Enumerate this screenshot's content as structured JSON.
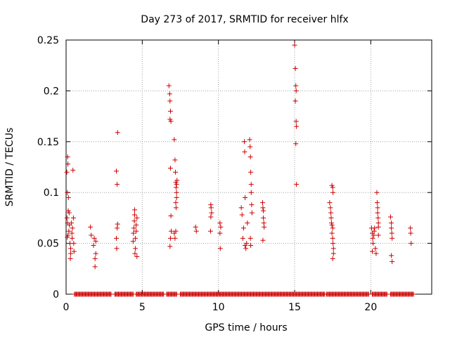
{
  "chart_data": {
    "type": "scatter",
    "title": "Day 273 of 2017, SRMTID for receiver hlfx",
    "xlabel": "GPS time / hours",
    "ylabel": "SRMTID / TECUs",
    "xlim": [
      0,
      24
    ],
    "ylim": [
      0,
      0.25
    ],
    "xticks": [
      0,
      5,
      10,
      15,
      20
    ],
    "xtick_labels": [
      "0",
      "5",
      "10",
      "15",
      "20"
    ],
    "yticks": [
      0,
      0.05,
      0.1,
      0.15,
      0.2,
      0.25
    ],
    "ytick_labels": [
      "0",
      "0.05",
      "0.1",
      "0.15",
      "0.2",
      "0.25"
    ],
    "grid": true,
    "marker": "+",
    "color": "#cc0000",
    "series": [
      {
        "points": [
          [
            0.05,
            0.12
          ],
          [
            0.1,
            0.135
          ],
          [
            0.12,
            0.128
          ],
          [
            0.08,
            0.1
          ],
          [
            0.15,
            0.095
          ],
          [
            0.06,
            0.075
          ],
          [
            0.1,
            0.07
          ],
          [
            0.14,
            0.082
          ],
          [
            0.2,
            0.08
          ],
          [
            0.08,
            0.056
          ],
          [
            0.12,
            0.058
          ],
          [
            0.18,
            0.062
          ],
          [
            0.22,
            0.068
          ],
          [
            0.25,
            0.05
          ],
          [
            0.3,
            0.045
          ],
          [
            0.3,
            0.04
          ],
          [
            0.28,
            0.035
          ],
          [
            0.35,
            0.07
          ],
          [
            0.38,
            0.06
          ],
          [
            0.4,
            0.055
          ],
          [
            0.42,
            0.065
          ],
          [
            0.45,
            0.122
          ],
          [
            0.48,
            0.075
          ],
          [
            0.5,
            0.05
          ],
          [
            0.52,
            0.042
          ],
          [
            1.6,
            0.066
          ],
          [
            1.65,
            0.058
          ],
          [
            1.8,
            0.048
          ],
          [
            1.85,
            0.055
          ],
          [
            1.9,
            0.035
          ],
          [
            1.9,
            0.027
          ],
          [
            1.95,
            0.04
          ],
          [
            1.95,
            0.052
          ],
          [
            3.3,
            0.055
          ],
          [
            3.32,
            0.045
          ],
          [
            3.35,
            0.065
          ],
          [
            3.38,
            0.069
          ],
          [
            3.35,
            0.108
          ],
          [
            3.3,
            0.121
          ],
          [
            3.38,
            0.159
          ],
          [
            4.4,
            0.052
          ],
          [
            4.42,
            0.06
          ],
          [
            4.45,
            0.065
          ],
          [
            4.48,
            0.072
          ],
          [
            4.5,
            0.078
          ],
          [
            4.5,
            0.083
          ],
          [
            4.52,
            0.04
          ],
          [
            4.55,
            0.045
          ],
          [
            4.55,
            0.055
          ],
          [
            4.6,
            0.062
          ],
          [
            4.6,
            0.068
          ],
          [
            4.65,
            0.075
          ],
          [
            4.65,
            0.037
          ],
          [
            6.75,
            0.205
          ],
          [
            6.8,
            0.197
          ],
          [
            6.82,
            0.19
          ],
          [
            6.85,
            0.18
          ],
          [
            6.88,
            0.17
          ],
          [
            6.82,
            0.172
          ],
          [
            6.85,
            0.124
          ],
          [
            6.88,
            0.077
          ],
          [
            6.9,
            0.062
          ],
          [
            6.85,
            0.055
          ],
          [
            6.82,
            0.047
          ],
          [
            7.1,
            0.152
          ],
          [
            7.15,
            0.132
          ],
          [
            7.18,
            0.12
          ],
          [
            7.2,
            0.11
          ],
          [
            7.22,
            0.105
          ],
          [
            7.25,
            0.1
          ],
          [
            7.25,
            0.095
          ],
          [
            7.2,
            0.09
          ],
          [
            7.22,
            0.085
          ],
          [
            7.25,
            0.108
          ],
          [
            7.28,
            0.112
          ],
          [
            7.2,
            0.062
          ],
          [
            7.15,
            0.055
          ],
          [
            7.1,
            0.06
          ],
          [
            8.5,
            0.066
          ],
          [
            8.55,
            0.062
          ],
          [
            9.5,
            0.088
          ],
          [
            9.52,
            0.085
          ],
          [
            9.55,
            0.08
          ],
          [
            9.5,
            0.076
          ],
          [
            9.48,
            0.062
          ],
          [
            10.1,
            0.07
          ],
          [
            10.15,
            0.066
          ],
          [
            10.1,
            0.06
          ],
          [
            10.12,
            0.045
          ],
          [
            11.5,
            0.085
          ],
          [
            11.55,
            0.078
          ],
          [
            11.6,
            0.055
          ],
          [
            11.65,
            0.065
          ],
          [
            11.7,
            0.15
          ],
          [
            11.72,
            0.14
          ],
          [
            11.75,
            0.095
          ],
          [
            11.75,
            0.048
          ],
          [
            11.8,
            0.045
          ],
          [
            11.85,
            0.05
          ],
          [
            11.9,
            0.07
          ],
          [
            12.05,
            0.152
          ],
          [
            12.08,
            0.145
          ],
          [
            12.1,
            0.135
          ],
          [
            12.12,
            0.12
          ],
          [
            12.15,
            0.108
          ],
          [
            12.15,
            0.1
          ],
          [
            12.18,
            0.088
          ],
          [
            12.2,
            0.08
          ],
          [
            12.1,
            0.055
          ],
          [
            12.12,
            0.048
          ],
          [
            12.9,
            0.09
          ],
          [
            12.92,
            0.085
          ],
          [
            12.95,
            0.082
          ],
          [
            12.95,
            0.075
          ],
          [
            12.98,
            0.07
          ],
          [
            13.0,
            0.066
          ],
          [
            12.92,
            0.053
          ],
          [
            15.0,
            0.245
          ],
          [
            15.05,
            0.222
          ],
          [
            15.08,
            0.205
          ],
          [
            15.1,
            0.2
          ],
          [
            15.05,
            0.19
          ],
          [
            15.1,
            0.17
          ],
          [
            15.12,
            0.165
          ],
          [
            15.08,
            0.148
          ],
          [
            15.12,
            0.108
          ],
          [
            17.3,
            0.09
          ],
          [
            17.35,
            0.085
          ],
          [
            17.38,
            0.08
          ],
          [
            17.4,
            0.075
          ],
          [
            17.42,
            0.07
          ],
          [
            17.45,
            0.068
          ],
          [
            17.5,
            0.065
          ],
          [
            17.5,
            0.105
          ],
          [
            17.52,
            0.1
          ],
          [
            17.45,
            0.06
          ],
          [
            17.5,
            0.055
          ],
          [
            17.52,
            0.05
          ],
          [
            17.55,
            0.045
          ],
          [
            17.55,
            0.04
          ],
          [
            17.5,
            0.035
          ],
          [
            17.45,
            0.107
          ],
          [
            20.05,
            0.065
          ],
          [
            20.1,
            0.06
          ],
          [
            20.12,
            0.055
          ],
          [
            20.15,
            0.05
          ],
          [
            20.1,
            0.042
          ],
          [
            20.2,
            0.058
          ],
          [
            20.22,
            0.062
          ],
          [
            20.25,
            0.065
          ],
          [
            20.3,
            0.045
          ],
          [
            20.35,
            0.04
          ],
          [
            20.4,
            0.1
          ],
          [
            20.42,
            0.09
          ],
          [
            20.45,
            0.085
          ],
          [
            20.45,
            0.08
          ],
          [
            20.48,
            0.075
          ],
          [
            20.5,
            0.07
          ],
          [
            20.5,
            0.066
          ],
          [
            20.5,
            0.058
          ],
          [
            21.3,
            0.076
          ],
          [
            21.35,
            0.07
          ],
          [
            21.35,
            0.065
          ],
          [
            21.38,
            0.06
          ],
          [
            21.4,
            0.055
          ],
          [
            21.35,
            0.038
          ],
          [
            21.4,
            0.032
          ],
          [
            22.6,
            0.065
          ],
          [
            22.62,
            0.06
          ],
          [
            22.65,
            0.05
          ]
        ],
        "zero_band_ranges": [
          [
            0.55,
            3.0
          ],
          [
            3.2,
            4.4
          ],
          [
            4.6,
            6.4
          ],
          [
            6.6,
            7.3
          ],
          [
            7.5,
            17.0
          ],
          [
            17.1,
            19.9
          ],
          [
            20.1,
            21.1
          ],
          [
            21.3,
            22.8
          ]
        ]
      }
    ]
  }
}
